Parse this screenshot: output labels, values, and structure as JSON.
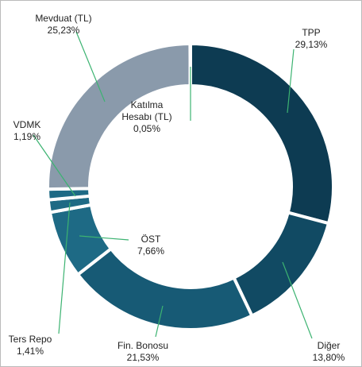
{
  "chart_data": {
    "type": "donut",
    "categories": [
      "TPP",
      "Diğer",
      "Fin. Bonosu",
      "ÖST",
      "Ters Repo",
      "VDMK",
      "Mevduat (TL)",
      "Katılma Hesabı (TL)"
    ],
    "values": [
      29.13,
      13.8,
      21.53,
      7.66,
      1.41,
      1.19,
      25.23,
      0.05
    ],
    "value_labels": [
      "29,13%",
      "13,80%",
      "21,53%",
      "7,66%",
      "1,41%",
      "1,19%",
      "25,23%",
      "0,05%"
    ],
    "colors": [
      "#0d3b52",
      "#114a63",
      "#175a75",
      "#1e6a85",
      "#1e6a85",
      "#1e6a85",
      "#8a9aab",
      "#8a9aab"
    ]
  }
}
